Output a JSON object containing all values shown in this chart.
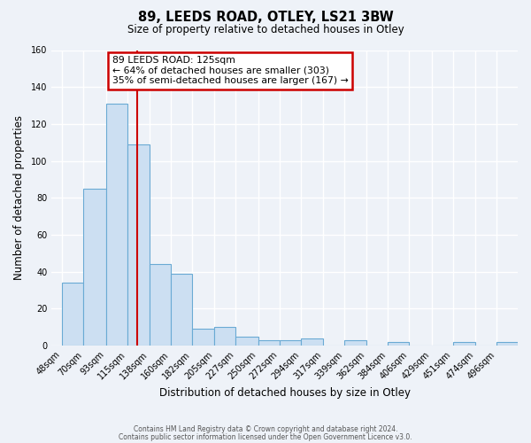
{
  "title": "89, LEEDS ROAD, OTLEY, LS21 3BW",
  "subtitle": "Size of property relative to detached houses in Otley",
  "xlabel": "Distribution of detached houses by size in Otley",
  "ylabel": "Number of detached properties",
  "bar_color": "#ccdff2",
  "bar_edge_color": "#6aaad4",
  "background_color": "#eef2f8",
  "grid_color": "#ffffff",
  "bin_labels": [
    "48sqm",
    "70sqm",
    "93sqm",
    "115sqm",
    "138sqm",
    "160sqm",
    "182sqm",
    "205sqm",
    "227sqm",
    "250sqm",
    "272sqm",
    "294sqm",
    "317sqm",
    "339sqm",
    "362sqm",
    "384sqm",
    "406sqm",
    "429sqm",
    "451sqm",
    "474sqm",
    "496sqm"
  ],
  "bin_edges": [
    48,
    70,
    93,
    115,
    138,
    160,
    182,
    205,
    227,
    250,
    272,
    294,
    317,
    339,
    362,
    384,
    406,
    429,
    451,
    474,
    496
  ],
  "bar_heights": [
    34,
    85,
    131,
    109,
    44,
    39,
    9,
    10,
    5,
    3,
    3,
    4,
    0,
    3,
    0,
    2,
    0,
    0,
    2,
    0,
    2
  ],
  "property_line_x": 125,
  "annotation_text_line1": "89 LEEDS ROAD: 125sqm",
  "annotation_text_line2": "← 64% of detached houses are smaller (303)",
  "annotation_text_line3": "35% of semi-detached houses are larger (167) →",
  "annotation_box_color": "#ffffff",
  "annotation_box_edge_color": "#cc0000",
  "vline_color": "#cc0000",
  "ylim": [
    0,
    160
  ],
  "yticks": [
    0,
    20,
    40,
    60,
    80,
    100,
    120,
    140,
    160
  ],
  "footer_line1": "Contains HM Land Registry data © Crown copyright and database right 2024.",
  "footer_line2": "Contains public sector information licensed under the Open Government Licence v3.0."
}
